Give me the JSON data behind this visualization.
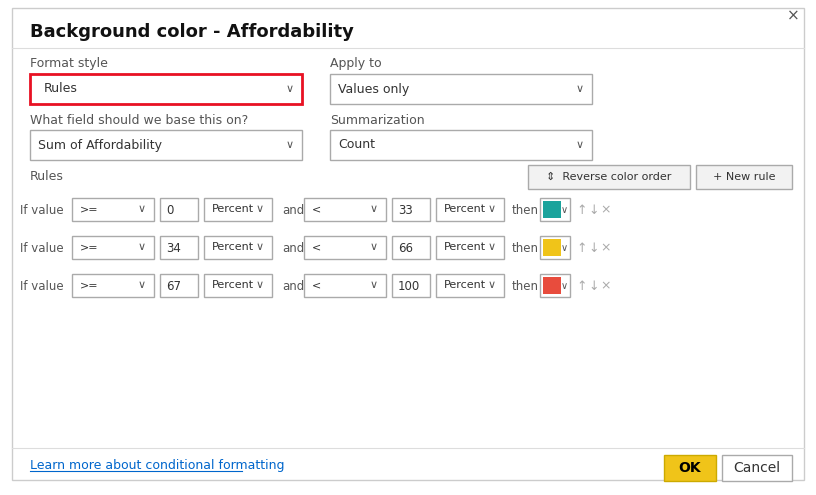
{
  "title": "Background color - Affordability",
  "close_x": "×",
  "format_style_label": "Format style",
  "format_style_value": "Rules",
  "apply_to_label": "Apply to",
  "apply_to_value": "Values only",
  "field_label": "What field should we base this on?",
  "field_value": "Sum of Affordability",
  "summarization_label": "Summarization",
  "summarization_value": "Count",
  "rules_label": "Rules",
  "reverse_btn": "⇕  Reverse color order",
  "new_rule_btn": "+ New rule",
  "rules": [
    {
      "left_val": "0",
      "right_val": "33",
      "color": "#1BA39C"
    },
    {
      "left_val": "34",
      "right_val": "66",
      "color": "#F0C419"
    },
    {
      "left_val": "67",
      "right_val": "100",
      "color": "#E84C3D"
    }
  ],
  "if_value_text": "If value",
  "op1": ">=",
  "op2": "<",
  "unit": "Percent",
  "and_text": "and",
  "then_text": "then",
  "learn_more_text": "Learn more about conditional formatting",
  "ok_btn": "OK",
  "cancel_btn": "Cancel",
  "bg_color": "#FFFFFF",
  "dialog_border": "#CCCCCC",
  "dropdown_border": "#AAAAAA",
  "row_bg_even": "#F2F2F2",
  "row_bg_odd": "#FFFFFF",
  "label_color": "#333333",
  "format_style_border_red": "#E81123",
  "btn_bg": "#F2F2F2",
  "ok_btn_color": "#F0C419",
  "ok_btn_text_color": "#000000",
  "link_color": "#0066CC"
}
